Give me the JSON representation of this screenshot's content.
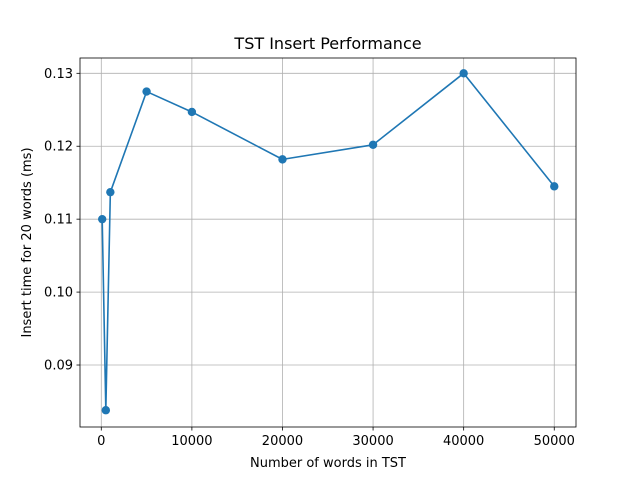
{
  "chart_data": {
    "type": "line",
    "title": "TST Insert Performance",
    "xlabel": "Number of words in TST",
    "ylabel": "Insert time for 20 words (ms)",
    "xlim": [
      -2350,
      52400
    ],
    "ylim": [
      0.0815,
      0.1321
    ],
    "xticks": [
      0,
      10000,
      20000,
      30000,
      40000,
      50000
    ],
    "xtick_labels": [
      "0",
      "10000",
      "20000",
      "30000",
      "40000",
      "50000"
    ],
    "yticks": [
      0.09,
      0.1,
      0.11,
      0.12,
      0.13
    ],
    "ytick_labels": [
      "0.09",
      "0.10",
      "0.11",
      "0.12",
      "0.13"
    ],
    "grid": true,
    "marker": "circle",
    "color": "#1f77b4",
    "series": [
      {
        "x": [
          100,
          500,
          1000,
          5000,
          10000,
          20000,
          30000,
          40000,
          50000
        ],
        "y": [
          0.11,
          0.0838,
          0.1137,
          0.1275,
          0.1247,
          0.1182,
          0.1202,
          0.13,
          0.1145
        ]
      }
    ]
  }
}
